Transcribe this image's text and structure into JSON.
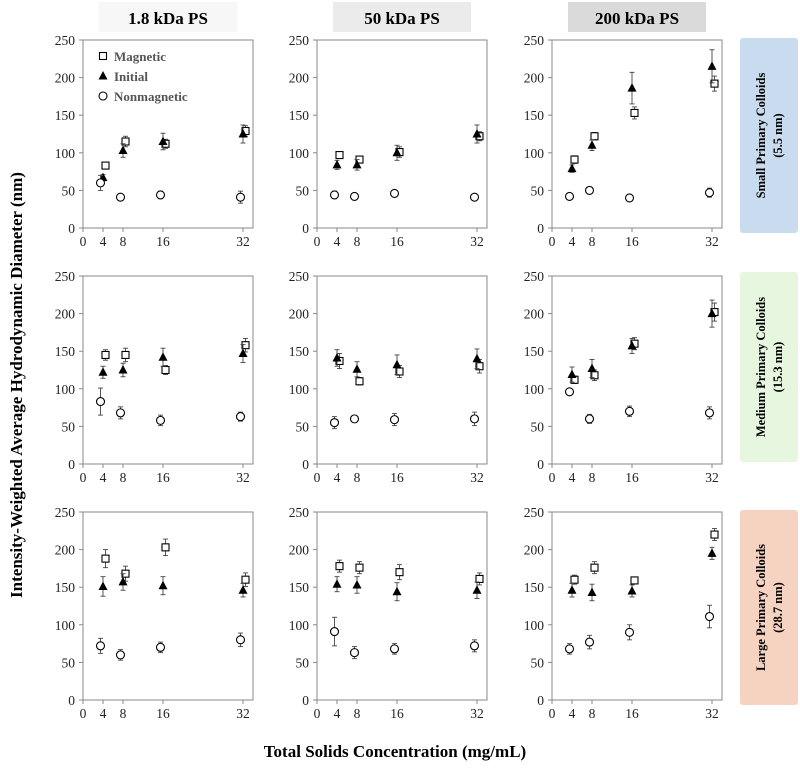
{
  "figure": {
    "ylabel": "Intensity-Weighted Average Hydrodynamic Diameter (nm)",
    "xlabel": "Total Solids Concentration (mg/mL)"
  },
  "columns": [
    "1.8 kDa PS",
    "50 kDa PS",
    "200 kDa PS"
  ],
  "rows": [
    {
      "label": "Small Primary Colloids",
      "sub": "(5.5 nm)",
      "color": "#c9dcef"
    },
    {
      "label": "Medium Primary Colloids",
      "sub": "(15.3 nm)",
      "color": "#e6f6df"
    },
    {
      "label": "Large Primary Colloids",
      "sub": "(28.7 nm)",
      "color": "#f6d2c0"
    }
  ],
  "legend": [
    "Magnetic",
    "Initial",
    "Nonmagnetic"
  ],
  "chart_data": {
    "type": "scatter",
    "xlim": [
      0,
      34
    ],
    "ylim": [
      0,
      250
    ],
    "xticks": [
      0,
      4,
      8,
      16,
      32
    ],
    "yticks": [
      0,
      50,
      100,
      150,
      200,
      250
    ],
    "series_names": [
      "Magnetic",
      "Initial",
      "Nonmagnetic"
    ],
    "panels": [
      {
        "row": 0,
        "col": 0,
        "series": [
          {
            "name": "Magnetic",
            "x": [
              4.5,
              8.5,
              16.5,
              32.5
            ],
            "y": [
              83,
              115,
              112,
              129
            ],
            "err": [
              3,
              7,
              6,
              7
            ]
          },
          {
            "name": "Initial",
            "x": [
              4,
              8,
              16,
              32
            ],
            "y": [
              67,
              103,
              115,
              125
            ],
            "err": [
              4,
              9,
              11,
              12
            ]
          },
          {
            "name": "Nonmagnetic",
            "x": [
              3.5,
              7.5,
              15.5,
              31.5
            ],
            "y": [
              60,
              41,
              44,
              41
            ],
            "err": [
              10,
              3,
              5,
              8
            ]
          }
        ]
      },
      {
        "row": 0,
        "col": 1,
        "series": [
          {
            "name": "Magnetic",
            "x": [
              4.5,
              8.5,
              16.5,
              32.5
            ],
            "y": [
              97,
              91,
              101,
              122
            ],
            "err": [
              3,
              4,
              7,
              6
            ]
          },
          {
            "name": "Initial",
            "x": [
              4,
              8,
              16,
              32
            ],
            "y": [
              84,
              84,
              100,
              125
            ],
            "err": [
              6,
              7,
              10,
              12
            ]
          },
          {
            "name": "Nonmagnetic",
            "x": [
              3.5,
              7.5,
              15.5,
              31.5
            ],
            "y": [
              44,
              42,
              46,
              41
            ],
            "err": [
              5,
              3,
              2,
              3
            ]
          }
        ]
      },
      {
        "row": 0,
        "col": 2,
        "series": [
          {
            "name": "Magnetic",
            "x": [
              4.5,
              8.5,
              16.5,
              32.5
            ],
            "y": [
              91,
              122,
              153,
              192
            ],
            "err": [
              5,
              5,
              8,
              10
            ]
          },
          {
            "name": "Initial",
            "x": [
              4,
              8,
              16,
              32
            ],
            "y": [
              79,
              110,
              186,
              215
            ],
            "err": [
              5,
              7,
              21,
              22
            ]
          },
          {
            "name": "Nonmagnetic",
            "x": [
              3.5,
              7.5,
              15.5,
              31.5
            ],
            "y": [
              42,
              50,
              40,
              47
            ],
            "err": [
              2,
              2,
              4,
              6
            ]
          }
        ]
      },
      {
        "row": 1,
        "col": 0,
        "series": [
          {
            "name": "Magnetic",
            "x": [
              4.5,
              8.5,
              16.5,
              32.5
            ],
            "y": [
              145,
              145,
              125,
              158
            ],
            "err": [
              7,
              9,
              6,
              9
            ]
          },
          {
            "name": "Initial",
            "x": [
              4,
              8,
              16,
              32
            ],
            "y": [
              122,
              125,
              142,
              147
            ],
            "err": [
              8,
              9,
              12,
              12
            ]
          },
          {
            "name": "Nonmagnetic",
            "x": [
              3.5,
              7.5,
              15.5,
              31.5
            ],
            "y": [
              83,
              68,
              58,
              63
            ],
            "err": [
              18,
              8,
              7,
              6
            ]
          }
        ]
      },
      {
        "row": 1,
        "col": 1,
        "series": [
          {
            "name": "Magnetic",
            "x": [
              4.5,
              8.5,
              16.5,
              32.5
            ],
            "y": [
              137,
              110,
              123,
              130
            ],
            "err": [
              10,
              5,
              8,
              9
            ]
          },
          {
            "name": "Initial",
            "x": [
              4,
              8,
              16,
              32
            ],
            "y": [
              141,
              126,
              132,
              140
            ],
            "err": [
              11,
              10,
              13,
              13
            ]
          },
          {
            "name": "Nonmagnetic",
            "x": [
              3.5,
              7.5,
              15.5,
              31.5
            ],
            "y": [
              55,
              60,
              59,
              60
            ],
            "err": [
              8,
              4,
              8,
              9
            ]
          }
        ]
      },
      {
        "row": 1,
        "col": 2,
        "series": [
          {
            "name": "Magnetic",
            "x": [
              4.5,
              8.5,
              16.5,
              32.5
            ],
            "y": [
              112,
              118,
              160,
              202
            ],
            "err": [
              5,
              7,
              8,
              12
            ]
          },
          {
            "name": "Initial",
            "x": [
              4,
              8,
              16,
              32
            ],
            "y": [
              119,
              127,
              157,
              200
            ],
            "err": [
              10,
              12,
              10,
              18
            ]
          },
          {
            "name": "Nonmagnetic",
            "x": [
              3.5,
              7.5,
              15.5,
              31.5
            ],
            "y": [
              96,
              60,
              70,
              68
            ],
            "err": [
              2,
              6,
              7,
              8
            ]
          }
        ]
      },
      {
        "row": 2,
        "col": 0,
        "series": [
          {
            "name": "Magnetic",
            "x": [
              4.5,
              8.5,
              16.5,
              32.5
            ],
            "y": [
              188,
              168,
              203,
              160
            ],
            "err": [
              12,
              10,
              11,
              9
            ]
          },
          {
            "name": "Initial",
            "x": [
              4,
              8,
              16,
              32
            ],
            "y": [
              151,
              157,
              152,
              146
            ],
            "err": [
              13,
              11,
              12,
              9
            ]
          },
          {
            "name": "Nonmagnetic",
            "x": [
              3.5,
              7.5,
              15.5,
              31.5
            ],
            "y": [
              72,
              60,
              70,
              80
            ],
            "err": [
              10,
              7,
              7,
              9
            ]
          }
        ]
      },
      {
        "row": 2,
        "col": 1,
        "series": [
          {
            "name": "Magnetic",
            "x": [
              4.5,
              8.5,
              16.5,
              32.5
            ],
            "y": [
              178,
              176,
              170,
              161
            ],
            "err": [
              8,
              8,
              10,
              8
            ]
          },
          {
            "name": "Initial",
            "x": [
              4,
              8,
              16,
              32
            ],
            "y": [
              154,
              153,
              144,
              146
            ],
            "err": [
              10,
              11,
              12,
              11
            ]
          },
          {
            "name": "Nonmagnetic",
            "x": [
              3.5,
              7.5,
              15.5,
              31.5
            ],
            "y": [
              91,
              63,
              68,
              72
            ],
            "err": [
              19,
              8,
              7,
              8
            ]
          }
        ]
      },
      {
        "row": 2,
        "col": 2,
        "series": [
          {
            "name": "Magnetic",
            "x": [
              4.5,
              8.5,
              16.5,
              32.5
            ],
            "y": [
              160,
              176,
              159,
              220
            ],
            "err": [
              6,
              8,
              4,
              8
            ]
          },
          {
            "name": "Initial",
            "x": [
              4,
              8,
              16,
              32
            ],
            "y": [
              146,
              143,
              145,
              195
            ],
            "err": [
              9,
              11,
              8,
              8
            ]
          },
          {
            "name": "Nonmagnetic",
            "x": [
              3.5,
              7.5,
              15.5,
              31.5
            ],
            "y": [
              68,
              77,
              90,
              111
            ],
            "err": [
              7,
              9,
              10,
              15
            ]
          }
        ]
      }
    ]
  }
}
